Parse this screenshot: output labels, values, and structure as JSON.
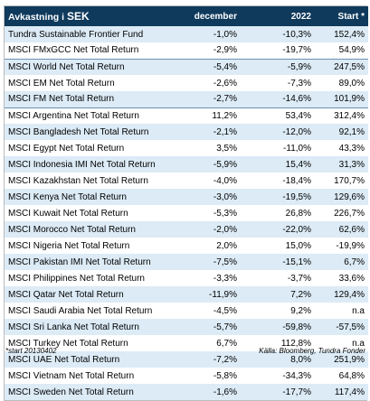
{
  "header": {
    "title_prefix": "Avkastning i",
    "title_currency": "SEK",
    "col_december": "december",
    "col_year": "2022",
    "col_start": "Start *"
  },
  "rows": [
    {
      "name": "Tundra Sustainable Frontier Fund",
      "december": "-1,0%",
      "year": "-10,3%",
      "start": "152,4%"
    },
    {
      "name": "MSCI FMxGCC Net Total Return",
      "december": "-2,9%",
      "year": "-19,7%",
      "start": "54,9%"
    },
    {
      "name": "MSCI World Net Total Return",
      "december": "-5,4%",
      "year": "-5,9%",
      "start": "247,5%"
    },
    {
      "name": "MSCI EM Net Total Return",
      "december": "-2,6%",
      "year": "-7,3%",
      "start": "89,0%"
    },
    {
      "name": "MSCI FM Net Total Return",
      "december": "-2,7%",
      "year": "-14,6%",
      "start": "101,9%"
    },
    {
      "name": "MSCI Argentina Net Total Return",
      "december": "11,2%",
      "year": "53,4%",
      "start": "312,4%"
    },
    {
      "name": "MSCI Bangladesh Net Total Return",
      "december": "-2,1%",
      "year": "-12,0%",
      "start": "92,1%"
    },
    {
      "name": "MSCI Egypt Net Total Return",
      "december": "3,5%",
      "year": "-11,0%",
      "start": "43,3%"
    },
    {
      "name": "MSCI Indonesia IMI Net Total Return",
      "december": "-5,9%",
      "year": "15,4%",
      "start": "31,3%"
    },
    {
      "name": "MSCI Kazakhstan Net Total Return",
      "december": "-4,0%",
      "year": "-18,4%",
      "start": "170,7%"
    },
    {
      "name": "MSCI Kenya Net Total Return",
      "december": "-3,0%",
      "year": "-19,5%",
      "start": "129,6%"
    },
    {
      "name": "MSCI Kuwait Net Total Return",
      "december": "-5,3%",
      "year": "26,8%",
      "start": "226,7%"
    },
    {
      "name": "MSCI Morocco Net Total Return",
      "december": "-2,0%",
      "year": "-22,0%",
      "start": "62,6%"
    },
    {
      "name": "MSCI Nigeria Net Total Return",
      "december": "2,0%",
      "year": "15,0%",
      "start": "-19,9%"
    },
    {
      "name": "MSCI Pakistan IMI Net Total Return",
      "december": "-7,5%",
      "year": "-15,1%",
      "start": "6,7%"
    },
    {
      "name": "MSCI Philippines Net Total Return",
      "december": "-3,3%",
      "year": "-3,7%",
      "start": "33,6%"
    },
    {
      "name": "MSCI Qatar Net Total Return",
      "december": "-11,9%",
      "year": "7,2%",
      "start": "129,4%"
    },
    {
      "name": "MSCI Saudi Arabia Net Total Return",
      "december": "-4,5%",
      "year": "9,2%",
      "start": "n.a"
    },
    {
      "name": "MSCI Sri Lanka Net Total Return",
      "december": "-5,7%",
      "year": "-59,8%",
      "start": "-57,5%"
    },
    {
      "name": "MSCI Turkey Net Total Return",
      "december": "6,7%",
      "year": "112,8%",
      "start": "n.a"
    },
    {
      "name": "MSCI UAE Net Total Return",
      "december": "-7,2%",
      "year": "8,0%",
      "start": "251,9%"
    },
    {
      "name": "MSCI Vietnam Net Total Return",
      "december": "-5,8%",
      "year": "-34,3%",
      "start": "64,8%"
    },
    {
      "name": "MSCI Sweden Net Total Return",
      "december": "-1,6%",
      "year": "-17,7%",
      "start": "117,4%"
    }
  ],
  "footer": {
    "note": "*start 20130402",
    "source": "Källa: Bloomberg, Tundra Fonder"
  },
  "colors": {
    "header_bg": "#0f3a5c",
    "stripe": "#dcebf6",
    "separator": "#6d8fb3"
  }
}
